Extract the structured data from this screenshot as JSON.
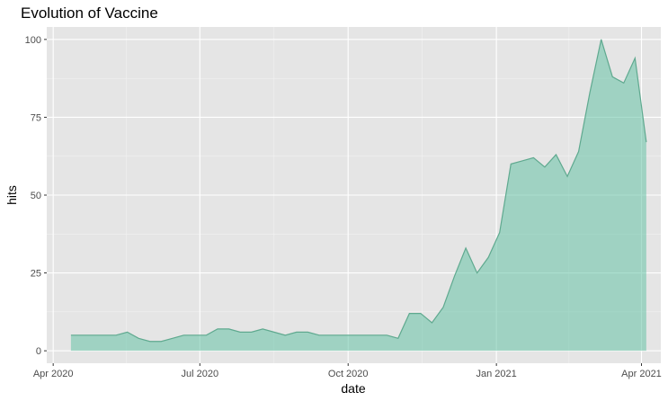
{
  "chart_data": {
    "type": "area",
    "title": "Evolution of Vaccine",
    "xlabel": "date",
    "ylabel": "hits",
    "x_ticks": [
      "Apr 2020",
      "Jul 2020",
      "Oct 2020",
      "Jan 2021",
      "Apr 2021"
    ],
    "y_ticks": [
      0,
      25,
      50,
      75,
      100
    ],
    "xlim": [
      "2020-03-28",
      "2021-04-13"
    ],
    "ylim": [
      -4,
      104
    ],
    "grid": true,
    "legend": "none",
    "colors": {
      "panel": "#e5e5e5",
      "grid_major": "#ffffff",
      "fill": "#66c2a5",
      "line": "#5fa98f",
      "ticks": "#4d4d4d"
    },
    "series": [
      {
        "x": [
          "2020-04-12",
          "2020-04-19",
          "2020-04-26",
          "2020-05-03",
          "2020-05-10",
          "2020-05-17",
          "2020-05-24",
          "2020-05-31",
          "2020-06-07",
          "2020-06-14",
          "2020-06-21",
          "2020-06-28",
          "2020-07-05",
          "2020-07-12",
          "2020-07-19",
          "2020-07-26",
          "2020-08-02",
          "2020-08-09",
          "2020-08-16",
          "2020-08-23",
          "2020-08-30",
          "2020-09-06",
          "2020-09-13",
          "2020-09-20",
          "2020-09-27",
          "2020-10-04",
          "2020-10-11",
          "2020-10-18",
          "2020-10-25",
          "2020-11-01",
          "2020-11-08",
          "2020-11-15",
          "2020-11-22",
          "2020-11-29",
          "2020-12-06",
          "2020-12-13",
          "2020-12-20",
          "2020-12-27",
          "2021-01-03",
          "2021-01-10",
          "2021-01-17",
          "2021-01-24",
          "2021-01-31",
          "2021-02-07",
          "2021-02-14",
          "2021-02-21",
          "2021-02-28",
          "2021-03-07",
          "2021-03-14",
          "2021-03-21",
          "2021-03-28",
          "2021-04-04"
        ],
        "y": [
          5,
          5,
          5,
          5,
          5,
          6,
          4,
          3,
          3,
          4,
          5,
          5,
          5,
          7,
          7,
          6,
          6,
          7,
          6,
          5,
          6,
          6,
          5,
          5,
          5,
          5,
          5,
          5,
          5,
          4,
          12,
          12,
          9,
          14,
          24,
          33,
          25,
          30,
          38,
          60,
          61,
          62,
          59,
          63,
          56,
          64,
          83,
          100,
          88,
          86,
          94,
          67
        ]
      }
    ]
  }
}
